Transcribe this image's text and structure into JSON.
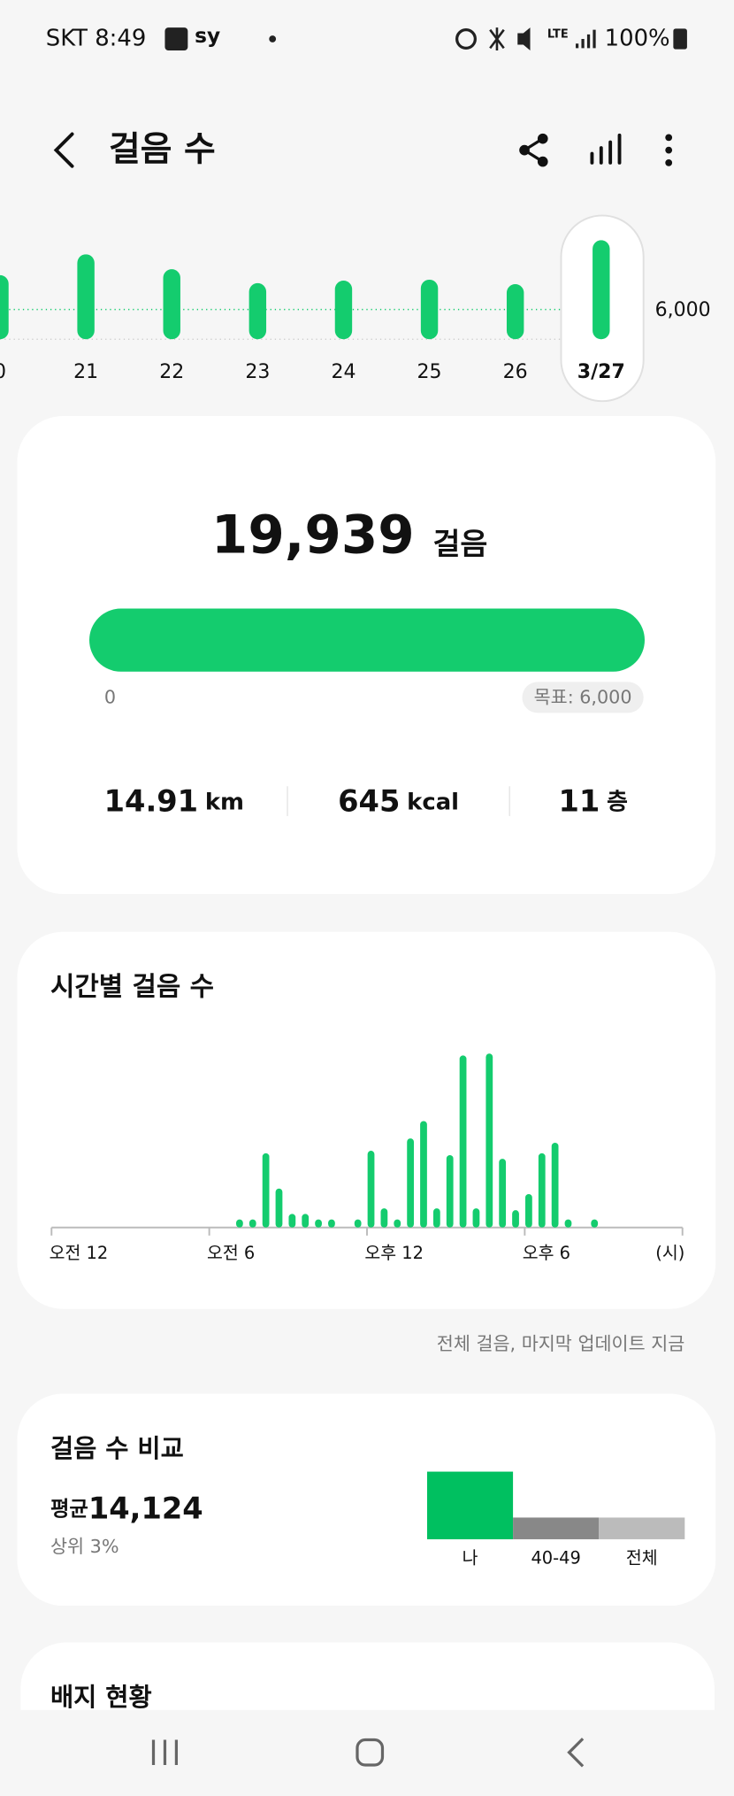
{
  "status_bar": {
    "time": "SKT 8:49",
    "app": "sy",
    "network": "LTE",
    "battery": "100%"
  },
  "header": {
    "title": "걸음 수"
  },
  "daily_chart": {
    "categories": [
      "0",
      "21",
      "22",
      "23",
      "24",
      "25",
      "26",
      "3/27"
    ],
    "values": [
      12900,
      17100,
      14100,
      11300,
      11800,
      12000,
      11100,
      19939
    ],
    "goal": 6000,
    "goal_label": "6,000",
    "color": "#14cc6e",
    "label_colors": [
      "#777777",
      "#777777",
      "#777777",
      "#d33a2c",
      "#777777",
      "#777777",
      "#777777",
      "#111111"
    ]
  },
  "summary": {
    "steps": "19,939",
    "unit": "걸음",
    "start": "0",
    "goal": "목표: 6,000",
    "stats": [
      {
        "value": "14.91",
        "unit": "km"
      },
      {
        "value": "645",
        "unit": "kcal"
      },
      {
        "value": "11",
        "unit": "층"
      }
    ]
  },
  "hourly_chart": {
    "title": "시간별 걸음 수",
    "type": "bar",
    "color": "#14cc6e",
    "x": [
      7,
      7.5,
      8,
      8.5,
      9,
      9.5,
      10,
      10.5,
      11.5,
      12,
      12.5,
      13,
      13.5,
      14,
      14.5,
      15,
      15.5,
      16,
      16.5,
      17,
      17.5,
      18,
      18.5,
      19,
      19.5,
      20.5
    ],
    "values": [
      130,
      130,
      1200,
      630,
      220,
      220,
      130,
      130,
      130,
      1240,
      310,
      130,
      1440,
      1720,
      310,
      1170,
      2780,
      310,
      2810,
      1110,
      280,
      540,
      1200,
      1370,
      130,
      130
    ],
    "xlim": [
      0,
      24
    ],
    "ylim": [
      0,
      3000
    ],
    "xticks": [
      {
        "value": 0,
        "label": "오전 12"
      },
      {
        "value": 6,
        "label": "오전 6"
      },
      {
        "value": 12,
        "label": "오후 12"
      },
      {
        "value": 18,
        "label": "오후 6"
      }
    ],
    "x_unit": "(시)"
  },
  "update_note": "전체 걸음, 마지막 업데이트 지금",
  "comparison": {
    "title": "걸음 수 비교",
    "average_label": "평균",
    "average": "14,124",
    "rank": "상위 3%",
    "categories": [
      "나",
      "40-49",
      "전체"
    ],
    "values": [
      19939,
      6400,
      6400
    ],
    "colors": [
      "#00c060",
      "#888888",
      "#bbbbbb"
    ]
  },
  "badges": {
    "title": "배지 현황"
  }
}
